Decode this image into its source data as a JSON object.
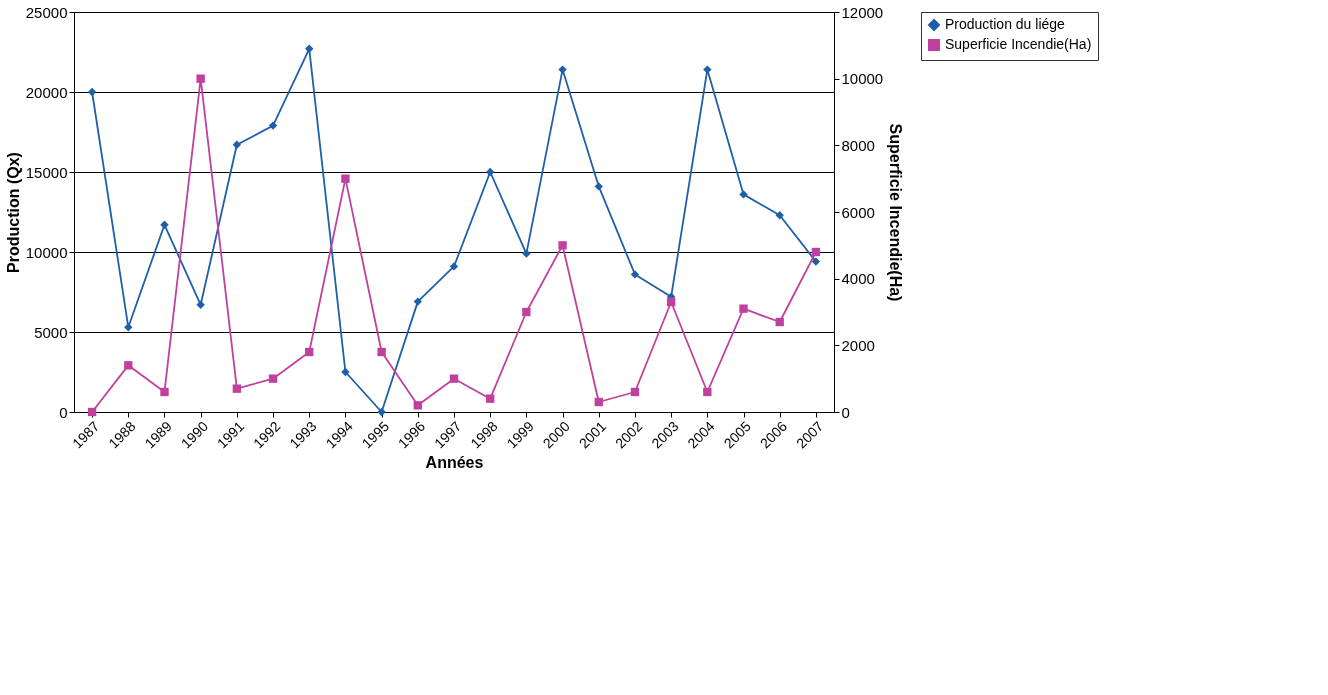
{
  "chart_data": {
    "type": "line",
    "xlabel": "Années",
    "ylabel": "Production (Qx)",
    "y2label": "Superficie Incendie(Ha)",
    "categories": [
      "1987",
      "1988",
      "1989",
      "1990",
      "1991",
      "1992",
      "1993",
      "1994",
      "1995",
      "1996",
      "1997",
      "1998",
      "1999",
      "2000",
      "2001",
      "2002",
      "2003",
      "2004",
      "2005",
      "2006",
      "2007"
    ],
    "series": [
      {
        "name": "Production du liége",
        "color": "#1f5fa8",
        "marker": "diamond",
        "values": [
          20000,
          5300,
          11700,
          6700,
          16700,
          17900,
          22700,
          2500,
          0,
          6900,
          9100,
          15000,
          9900,
          21400,
          14100,
          8600,
          7200,
          21400,
          13600,
          12300,
          9400
        ]
      },
      {
        "name": "Superficie Incendie(Ha)",
        "color": "#c040a0",
        "marker": "square",
        "axis": "y2",
        "values": [
          0,
          1400,
          600,
          10000,
          700,
          1000,
          1800,
          7000,
          1800,
          200,
          1000,
          400,
          3000,
          5000,
          300,
          600,
          3300,
          600,
          3100,
          2700,
          4800
        ]
      }
    ],
    "ylim": [
      0,
      25000
    ],
    "yticks": [
      0,
      5000,
      10000,
      15000,
      20000,
      25000
    ],
    "y2lim": [
      0,
      12000
    ],
    "y2ticks": [
      0,
      2000,
      4000,
      6000,
      8000,
      10000,
      12000
    ],
    "grid": "y",
    "legend": "top right",
    "line_style": "solid"
  }
}
